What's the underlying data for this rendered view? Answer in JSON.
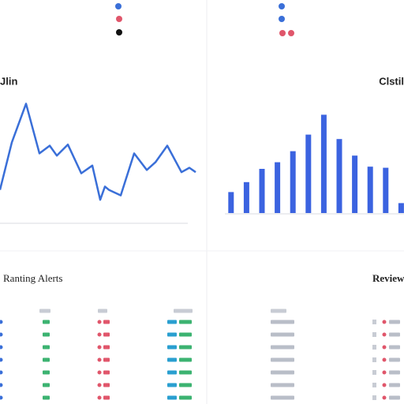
{
  "chart_data": [
    {
      "type": "line",
      "title": "Jlin",
      "x": [
        0,
        15,
        33,
        50,
        63,
        72,
        86,
        103,
        117,
        127,
        133,
        138,
        153,
        170,
        186,
        197,
        212,
        230,
        240,
        248
      ],
      "series": [
        {
          "color": "#3a6fd8",
          "values": [
            21,
            64,
            99,
            54,
            61,
            52,
            62,
            36,
            43,
            12,
            24,
            21,
            16,
            54,
            39,
            46,
            61,
            37,
            41,
            37
          ]
        }
      ],
      "xlim": [
        0,
        250
      ],
      "ylim": [
        0,
        100
      ]
    },
    {
      "type": "bar",
      "title": "Clstil",
      "categories": [
        null,
        null,
        null,
        null,
        null,
        null,
        null,
        null,
        null,
        null,
        null,
        null
      ],
      "values": [
        19,
        28,
        40,
        46,
        56,
        71,
        89,
        67,
        52,
        42,
        41,
        9
      ],
      "color": "#3b63e0",
      "ylim": [
        0,
        100
      ]
    }
  ],
  "panels": {
    "alerts_title": "Ranting Alerts",
    "reviews_title": "Reviewu"
  }
}
